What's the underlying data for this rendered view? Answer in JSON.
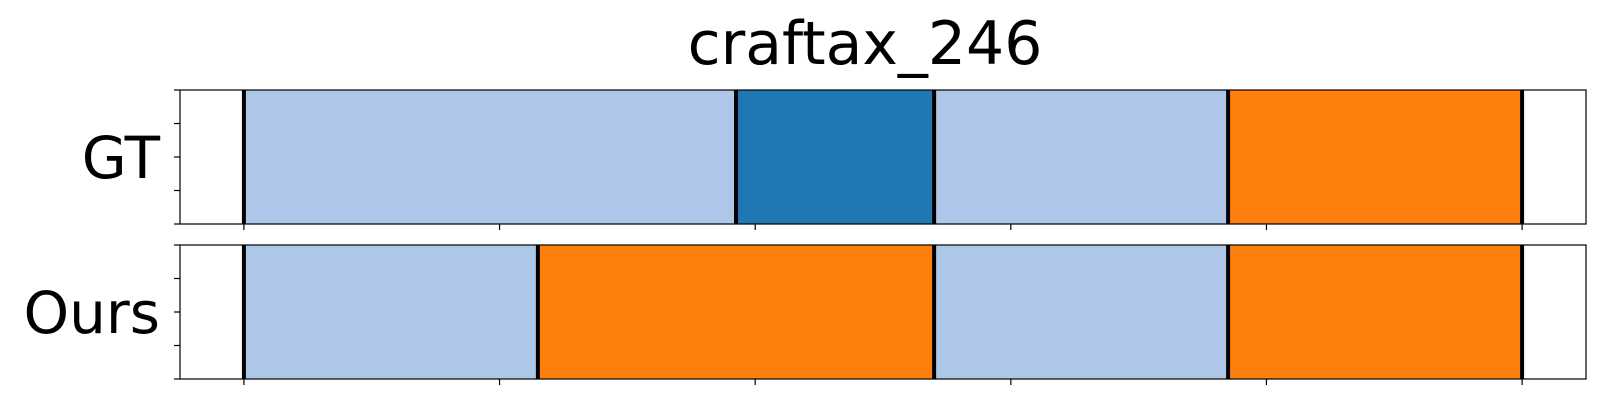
{
  "chart_data": {
    "type": "segmentation-timeline",
    "title": "craftax_246",
    "x_range": [
      -5,
      105
    ],
    "colors": {
      "light_blue": "#aec7e8",
      "blue": "#1f77b4",
      "orange": "#ff7f0e",
      "boundary": "#000000"
    },
    "rows": [
      {
        "label": "GT",
        "segments": [
          {
            "start": 0,
            "end": 38.5,
            "color": "light_blue"
          },
          {
            "start": 38.5,
            "end": 54,
            "color": "blue"
          },
          {
            "start": 54,
            "end": 77,
            "color": "light_blue"
          },
          {
            "start": 77,
            "end": 100,
            "color": "orange"
          }
        ],
        "boundaries": [
          0,
          38.5,
          54,
          77,
          100
        ]
      },
      {
        "label": "Ours",
        "segments": [
          {
            "start": 0,
            "end": 23,
            "color": "light_blue"
          },
          {
            "start": 23,
            "end": 54,
            "color": "orange"
          },
          {
            "start": 54,
            "end": 77,
            "color": "light_blue"
          },
          {
            "start": 77,
            "end": 100,
            "color": "orange"
          }
        ],
        "boundaries": [
          0,
          23,
          54,
          77,
          100
        ]
      }
    ],
    "x_ticks": [
      0,
      20,
      40,
      60,
      80,
      100
    ],
    "y_ticks_per_row": 5,
    "tick_labels_shown": false,
    "grid": false
  }
}
